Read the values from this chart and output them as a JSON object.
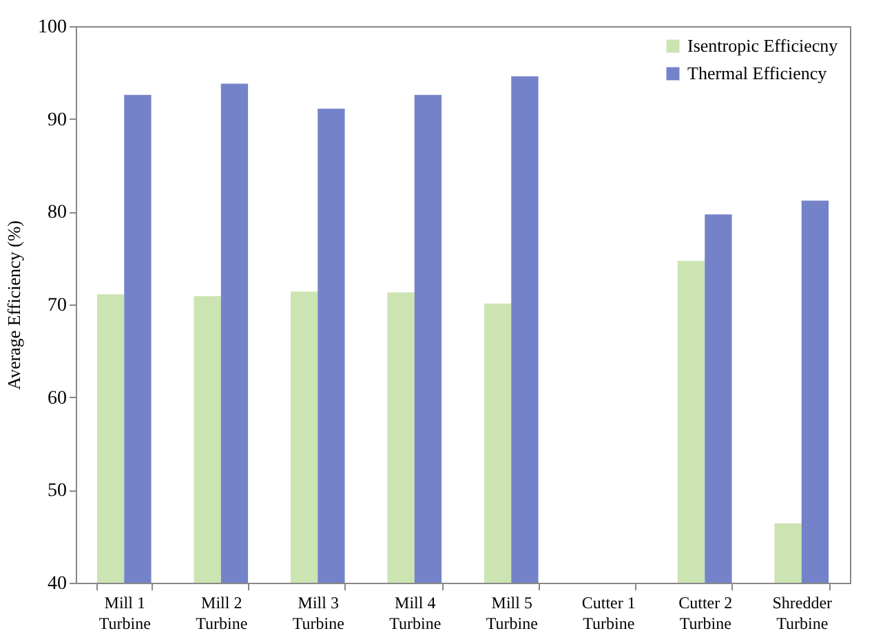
{
  "chart_data": {
    "type": "bar",
    "ylabel": "Average Efficiency (%)",
    "categories": [
      "Mill 1 Turbine",
      "Mill 2 Turbine",
      "Mill 3 Turbine",
      "Mill 4 Turbine",
      "Mill 5 Turbine",
      "Cutter 1 Turbine",
      "Cutter 2 Turbine",
      "Shredder Turbine"
    ],
    "series": [
      {
        "name": "Isentropic Efficiecny",
        "color": "#cce4b2",
        "values": [
          71.1,
          70.9,
          71.4,
          71.3,
          70.1,
          null,
          74.7,
          46.4
        ]
      },
      {
        "name": "Thermal Efficiency",
        "color": "#7483c9",
        "values": [
          92.6,
          93.8,
          91.1,
          92.6,
          94.6,
          null,
          79.7,
          81.2
        ]
      }
    ],
    "ylim": [
      40,
      100
    ],
    "yticks": [
      40,
      50,
      60,
      70,
      80,
      90,
      100
    ],
    "grid": false,
    "legend": "top right"
  }
}
